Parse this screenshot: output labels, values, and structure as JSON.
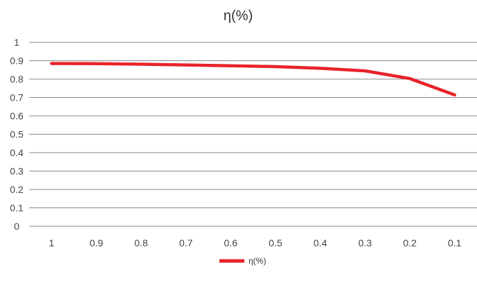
{
  "chart_data": {
    "type": "line",
    "title": "η(%)",
    "categories": [
      "1",
      "0.9",
      "0.8",
      "0.7",
      "0.6",
      "0.5",
      "0.4",
      "0.3",
      "0.2",
      "0.1"
    ],
    "series": [
      {
        "name": "η(%)",
        "values": [
          0.885,
          0.884,
          0.881,
          0.877,
          0.873,
          0.868,
          0.859,
          0.845,
          0.803,
          0.714
        ],
        "color": "#e8232b"
      }
    ],
    "ylim": [
      0,
      1
    ],
    "yticks": [
      "0",
      "0.1",
      "0.2",
      "0.3",
      "0.4",
      "0.5",
      "0.6",
      "0.7",
      "0.8",
      "0.9",
      "1"
    ],
    "grid": true,
    "legend": "bottom",
    "gridline_color": "#888888",
    "axis_text_color": "#444444"
  }
}
